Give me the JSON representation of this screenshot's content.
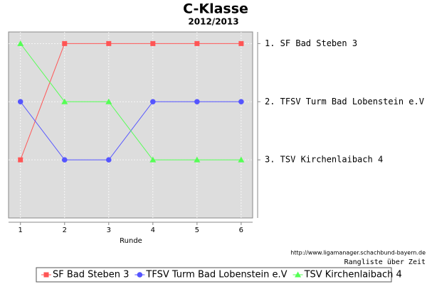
{
  "chart_data": {
    "type": "line",
    "title": "C-Klasse",
    "subtitle": "2012/2013",
    "x_label": "Runde",
    "source": "http://www.ligamanager.schachbund-bayern.de",
    "caption": "Rangliste über Zeit",
    "x": [
      1,
      2,
      3,
      4,
      5,
      6
    ],
    "xlim": [
      0.73,
      6.26
    ],
    "xticks": [
      1,
      2,
      3,
      4,
      5,
      6
    ],
    "ylim": [
      4,
      0.8
    ],
    "yticks": [
      {
        "value": 1,
        "label": "1. SF Bad Steben 3"
      },
      {
        "value": 2,
        "label": "2. TFSV Turm Bad Lobenstein e.V"
      },
      {
        "value": 3,
        "label": "3. TSV Kirchenlaibach 4"
      }
    ],
    "grid": true,
    "series": [
      {
        "name": "SF Bad Steben 3",
        "color": "#ff5555",
        "marker": "square",
        "values": [
          3,
          1,
          1,
          1,
          1,
          1
        ]
      },
      {
        "name": "TFSV Turm Bad Lobenstein e.V",
        "color": "#5555ff",
        "marker": "circle",
        "values": [
          2,
          3,
          3,
          2,
          2,
          2
        ]
      },
      {
        "name": "TSV Kirchenlaibach 4",
        "color": "#55ff55",
        "marker": "triangle",
        "values": [
          1,
          2,
          2,
          3,
          3,
          3
        ]
      }
    ]
  }
}
